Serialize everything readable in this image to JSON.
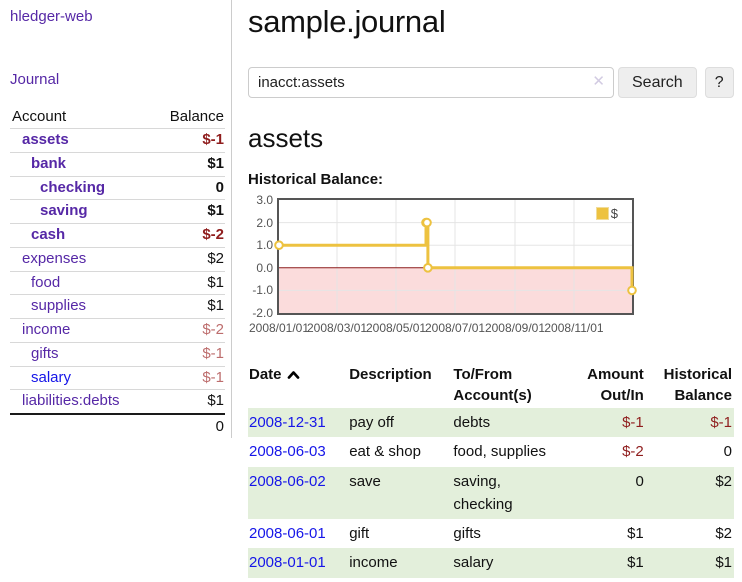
{
  "app": {
    "title": "hledger-web",
    "nav_journal": "Journal"
  },
  "sidebar": {
    "accounts_header": {
      "account": "Account",
      "balance": "Balance"
    },
    "accounts": [
      {
        "name": "assets",
        "depth": 1,
        "bold": true,
        "balance": "$-1",
        "negative": "strong"
      },
      {
        "name": "bank",
        "depth": 2,
        "bold": true,
        "balance": "$1",
        "negative": null
      },
      {
        "name": "checking",
        "depth": 3,
        "bold": true,
        "balance": "0",
        "negative": null
      },
      {
        "name": "saving",
        "depth": 3,
        "bold": true,
        "balance": "$1",
        "negative": null
      },
      {
        "name": "cash",
        "depth": 2,
        "bold": true,
        "balance": "$-2",
        "negative": "strong"
      },
      {
        "name": "expenses",
        "depth": 1,
        "bold": false,
        "balance": "$2",
        "negative": null
      },
      {
        "name": "food",
        "depth": 2,
        "bold": false,
        "balance": "$1",
        "negative": null
      },
      {
        "name": "supplies",
        "depth": 2,
        "bold": false,
        "balance": "$1",
        "negative": null
      },
      {
        "name": "income",
        "depth": 1,
        "bold": false,
        "balance": "$-2",
        "negative": "soft"
      },
      {
        "name": "gifts",
        "depth": 2,
        "bold": false,
        "balance": "$-1",
        "negative": "soft"
      },
      {
        "name": "salary",
        "depth": 2,
        "bold": false,
        "balance": "$-1",
        "negative": "soft",
        "unvisited": true
      },
      {
        "name": "liabilities:debts",
        "depth": 1,
        "bold": false,
        "balance": "$1",
        "negative": null
      }
    ],
    "total": "0"
  },
  "header": {
    "title": "sample.journal"
  },
  "search": {
    "value": "inacct:assets",
    "clear_icon": "✕",
    "button": "Search",
    "help_button": "?"
  },
  "account_page": {
    "title": "assets",
    "chart_label": "Historical Balance:"
  },
  "chart_data": {
    "type": "line",
    "step": true,
    "title": "Historical Balance:",
    "legend": "$",
    "x_range": [
      "2008-01-01",
      "2008-12-31"
    ],
    "ylim": [
      -2,
      3
    ],
    "y_ticks": [
      "3.0",
      "2.0",
      "1.0",
      "0.0",
      "-1.0",
      "-2.0"
    ],
    "x_ticks": [
      "2008/01/01",
      "2008/03/01",
      "2008/05/01",
      "2008/07/01",
      "2008/09/01",
      "2008/11/01"
    ],
    "series": [
      {
        "name": "$",
        "points": [
          {
            "date": "2008-01-01",
            "value": 1
          },
          {
            "date": "2008-06-01",
            "value": 2
          },
          {
            "date": "2008-06-02",
            "value": 2
          },
          {
            "date": "2008-06-03",
            "value": 0
          },
          {
            "date": "2008-12-31",
            "value": -1
          }
        ]
      }
    ],
    "grid": true,
    "negative_region_shaded": true,
    "legend_position": "top-right"
  },
  "register": {
    "columns": [
      {
        "label": "Date",
        "sort": "asc"
      },
      {
        "label": "Description"
      },
      {
        "label": "To/From Account(s)"
      },
      {
        "label": "Amount Out/In",
        "align": "right"
      },
      {
        "label": "Historical Balance",
        "align": "right"
      }
    ],
    "rows": [
      {
        "date": "2008-12-31",
        "description": "pay off",
        "accounts": "debts",
        "amount": "$-1",
        "amount_neg": true,
        "balance": "$-1",
        "balance_neg": true
      },
      {
        "date": "2008-06-03",
        "description": "eat & shop",
        "accounts": "food, supplies",
        "amount": "$-2",
        "amount_neg": true,
        "balance": "0",
        "balance_neg": false
      },
      {
        "date": "2008-06-02",
        "description": "save",
        "accounts": "saving, checking",
        "amount": "0",
        "amount_neg": false,
        "balance": "$2",
        "balance_neg": false
      },
      {
        "date": "2008-06-01",
        "description": "gift",
        "accounts": "gifts",
        "amount": "$1",
        "amount_neg": false,
        "balance": "$2",
        "balance_neg": false
      },
      {
        "date": "2008-01-01",
        "description": "income",
        "accounts": "salary",
        "amount": "$1",
        "amount_neg": false,
        "balance": "$1",
        "balance_neg": false
      }
    ]
  },
  "colors": {
    "link_purple": "#5628a6",
    "link_blue": "#1616e8",
    "negative_strong": "#8f1d1d",
    "negative_soft": "#bd6d6d",
    "row_green": "#e3efdb",
    "chart_line": "#EDC240",
    "chart_negative_bg": "#fbdcdc",
    "chart_zero_line": "#8b1a1a",
    "chart_grid": "#e5e5e5",
    "chart_border": "#555555",
    "chart_tick_text": "#545454"
  }
}
